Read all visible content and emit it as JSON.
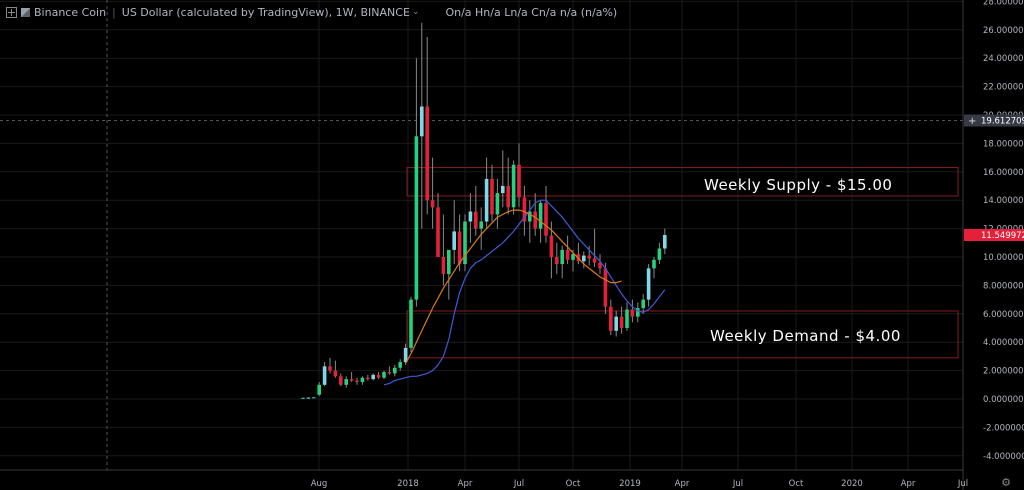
{
  "header": {
    "symbol_name": "Binance Coin",
    "quote": "US Dollar (calculated by TradingView)",
    "interval": "1W",
    "exchange": "BINANCE",
    "ohlc": "On/a  Hn/a  Ln/a  Cn/a  n/a (n/a%)"
  },
  "zones": {
    "supply_label": "Weekly Supply - $15.00",
    "demand_label": "Weekly Demand - $4.00"
  },
  "axis": {
    "y_ticks": [
      "28.0000000",
      "26.0000000",
      "24.0000000",
      "22.0000000",
      "20.0000000",
      "18.0000000",
      "16.0000000",
      "14.0000000",
      "12.0000000",
      "10.0000000",
      "8.0000000",
      "6.0000000",
      "4.0000000",
      "2.0000000",
      "0.0000000",
      "-2.0000000",
      "-4.0000000"
    ],
    "x_ticks": [
      "Aug",
      "2018",
      "Apr",
      "Jul",
      "Oct",
      "2019",
      "Apr",
      "Jul",
      "Oct",
      "2020",
      "Apr",
      "Jul"
    ],
    "crosshair_price": "19.6127094",
    "last_price": "11.5499725"
  },
  "colors": {
    "up": "#26d07c",
    "up_light": "#7fd8e8",
    "down": "#e5203a",
    "ma_fast": "#3d5bd6",
    "ma_slow": "#d77a1e",
    "zone_border": "#8b1a1a",
    "last_price_bg": "#e5203a",
    "crosshair_bg": "#363a45"
  },
  "chart_data": {
    "type": "candlestick",
    "ylim": [
      -5,
      28
    ],
    "grid": true,
    "candles": [
      {
        "o": 0.05,
        "h": 0.1,
        "l": 0.0,
        "c": 0.08
      },
      {
        "o": 0.08,
        "h": 0.12,
        "l": 0.05,
        "c": 0.1
      },
      {
        "o": 0.1,
        "h": 0.15,
        "l": 0.08,
        "c": 0.12
      },
      {
        "o": 0.3,
        "h": 1.2,
        "l": 0.2,
        "c": 1.0
      },
      {
        "o": 1.0,
        "h": 2.6,
        "l": 0.9,
        "c": 2.3
      },
      {
        "o": 2.3,
        "h": 2.9,
        "l": 1.8,
        "c": 2.0
      },
      {
        "o": 2.0,
        "h": 2.7,
        "l": 1.5,
        "c": 1.6
      },
      {
        "o": 1.6,
        "h": 1.8,
        "l": 0.9,
        "c": 1.0
      },
      {
        "o": 1.0,
        "h": 1.6,
        "l": 0.8,
        "c": 1.4
      },
      {
        "o": 1.4,
        "h": 1.9,
        "l": 1.2,
        "c": 1.3
      },
      {
        "o": 1.3,
        "h": 1.5,
        "l": 1.0,
        "c": 1.2
      },
      {
        "o": 1.2,
        "h": 1.6,
        "l": 1.0,
        "c": 1.5
      },
      {
        "o": 1.5,
        "h": 1.7,
        "l": 1.3,
        "c": 1.4
      },
      {
        "o": 1.4,
        "h": 1.8,
        "l": 1.3,
        "c": 1.7
      },
      {
        "o": 1.7,
        "h": 1.9,
        "l": 1.4,
        "c": 1.5
      },
      {
        "o": 1.5,
        "h": 2.0,
        "l": 1.4,
        "c": 1.9
      },
      {
        "o": 1.9,
        "h": 2.3,
        "l": 1.7,
        "c": 1.8
      },
      {
        "o": 1.8,
        "h": 2.4,
        "l": 1.6,
        "c": 2.2
      },
      {
        "o": 2.2,
        "h": 2.8,
        "l": 2.0,
        "c": 2.6
      },
      {
        "o": 2.6,
        "h": 3.9,
        "l": 2.4,
        "c": 3.6
      },
      {
        "o": 3.6,
        "h": 7.2,
        "l": 3.3,
        "c": 7.0
      },
      {
        "o": 7.0,
        "h": 24.0,
        "l": 6.5,
        "c": 18.5
      },
      {
        "o": 18.5,
        "h": 26.5,
        "l": 12.0,
        "c": 20.6
      },
      {
        "o": 20.6,
        "h": 25.5,
        "l": 13.0,
        "c": 14.0
      },
      {
        "o": 14.0,
        "h": 17.0,
        "l": 12.0,
        "c": 13.5
      },
      {
        "o": 13.5,
        "h": 14.5,
        "l": 10.0,
        "c": 10.0
      },
      {
        "o": 10.0,
        "h": 13.0,
        "l": 8.0,
        "c": 8.8
      },
      {
        "o": 8.8,
        "h": 10.5,
        "l": 7.0,
        "c": 10.5
      },
      {
        "o": 10.5,
        "h": 14.0,
        "l": 9.5,
        "c": 11.8
      },
      {
        "o": 11.8,
        "h": 13.0,
        "l": 9.0,
        "c": 9.5
      },
      {
        "o": 9.5,
        "h": 13.0,
        "l": 9.0,
        "c": 12.5
      },
      {
        "o": 12.5,
        "h": 14.5,
        "l": 11.0,
        "c": 13.2
      },
      {
        "o": 13.2,
        "h": 15.0,
        "l": 11.5,
        "c": 12.0
      },
      {
        "o": 12.0,
        "h": 13.5,
        "l": 10.5,
        "c": 12.5
      },
      {
        "o": 12.5,
        "h": 17.0,
        "l": 12.0,
        "c": 15.5
      },
      {
        "o": 15.5,
        "h": 16.5,
        "l": 12.5,
        "c": 13.0
      },
      {
        "o": 13.0,
        "h": 15.5,
        "l": 12.0,
        "c": 14.5
      },
      {
        "o": 14.5,
        "h": 17.5,
        "l": 13.5,
        "c": 15.0
      },
      {
        "o": 15.0,
        "h": 17.0,
        "l": 13.0,
        "c": 13.5
      },
      {
        "o": 13.5,
        "h": 16.8,
        "l": 13.0,
        "c": 16.5
      },
      {
        "o": 16.5,
        "h": 18.0,
        "l": 13.5,
        "c": 14.2
      },
      {
        "o": 14.2,
        "h": 15.0,
        "l": 11.5,
        "c": 12.5
      },
      {
        "o": 12.5,
        "h": 14.0,
        "l": 11.0,
        "c": 13.2
      },
      {
        "o": 13.2,
        "h": 14.5,
        "l": 11.5,
        "c": 12.0
      },
      {
        "o": 12.0,
        "h": 14.0,
        "l": 11.0,
        "c": 13.8
      },
      {
        "o": 13.8,
        "h": 15.0,
        "l": 11.0,
        "c": 11.5
      },
      {
        "o": 11.5,
        "h": 12.5,
        "l": 8.5,
        "c": 10.0
      },
      {
        "o": 10.0,
        "h": 11.0,
        "l": 8.8,
        "c": 9.5
      },
      {
        "o": 9.5,
        "h": 10.8,
        "l": 8.5,
        "c": 10.5
      },
      {
        "o": 10.5,
        "h": 11.5,
        "l": 9.5,
        "c": 9.8
      },
      {
        "o": 9.8,
        "h": 10.5,
        "l": 9.0,
        "c": 10.2
      },
      {
        "o": 10.2,
        "h": 11.0,
        "l": 9.5,
        "c": 9.7
      },
      {
        "o": 9.7,
        "h": 10.4,
        "l": 9.2,
        "c": 10.1
      },
      {
        "o": 10.1,
        "h": 10.8,
        "l": 9.4,
        "c": 9.9
      },
      {
        "o": 9.9,
        "h": 12.0,
        "l": 9.3,
        "c": 9.6
      },
      {
        "o": 9.6,
        "h": 10.2,
        "l": 8.8,
        "c": 9.2
      },
      {
        "o": 9.2,
        "h": 9.6,
        "l": 6.0,
        "c": 6.5
      },
      {
        "o": 6.5,
        "h": 7.0,
        "l": 4.5,
        "c": 4.8
      },
      {
        "o": 4.8,
        "h": 6.2,
        "l": 4.4,
        "c": 5.8
      },
      {
        "o": 5.8,
        "h": 6.5,
        "l": 4.6,
        "c": 5.0
      },
      {
        "o": 5.0,
        "h": 6.8,
        "l": 4.8,
        "c": 6.3
      },
      {
        "o": 6.3,
        "h": 7.0,
        "l": 5.4,
        "c": 5.8
      },
      {
        "o": 5.8,
        "h": 6.8,
        "l": 5.4,
        "c": 6.4
      },
      {
        "o": 6.4,
        "h": 7.4,
        "l": 6.0,
        "c": 7.0
      },
      {
        "o": 7.0,
        "h": 9.5,
        "l": 6.5,
        "c": 9.2
      },
      {
        "o": 9.2,
        "h": 10.0,
        "l": 8.5,
        "c": 9.8
      },
      {
        "o": 9.8,
        "h": 11.0,
        "l": 9.5,
        "c": 10.6
      },
      {
        "o": 10.6,
        "h": 12.0,
        "l": 10.2,
        "c": 11.55
      }
    ],
    "ma_fast": [
      1.0,
      1.1,
      1.3,
      1.4,
      1.5,
      1.6,
      1.6,
      1.7,
      1.8,
      2.0,
      2.4,
      3.0,
      4.2,
      6.0,
      7.5,
      8.5,
      9.2,
      9.6,
      9.8,
      10.1,
      10.4,
      10.7,
      11.0,
      11.4,
      11.8,
      12.3,
      12.8,
      13.3,
      13.8,
      14.0,
      14.0,
      13.6,
      13.2,
      12.8,
      12.3,
      11.8,
      11.3,
      10.9,
      10.5,
      10.1,
      9.7,
      9.2,
      8.6,
      8.0,
      7.4,
      6.9,
      6.5,
      6.2,
      6.1,
      6.3,
      6.7,
      7.2,
      7.7
    ],
    "ma_slow": [
      2.5,
      3.2,
      4.0,
      4.8,
      5.6,
      6.4,
      7.1,
      7.8,
      8.4,
      9.0,
      9.6,
      10.1,
      10.6,
      11.1,
      11.6,
      12.0,
      12.4,
      12.8,
      13.0,
      13.2,
      13.3,
      13.3,
      13.2,
      13.0,
      12.8,
      12.5,
      12.2,
      11.9,
      11.5,
      11.1,
      10.7,
      10.3,
      9.9,
      9.5,
      9.2,
      8.9,
      8.6,
      8.4,
      8.2,
      8.2,
      8.3
    ],
    "supply_zone": [
      14.3,
      16.3
    ],
    "demand_zone": [
      2.9,
      6.2
    ]
  }
}
